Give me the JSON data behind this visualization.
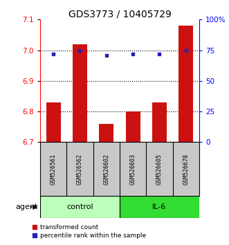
{
  "title": "GDS3773 / 10405729",
  "categories": [
    "GSM526561",
    "GSM526562",
    "GSM526602",
    "GSM526603",
    "GSM526605",
    "GSM526678"
  ],
  "bar_values": [
    6.83,
    7.02,
    6.76,
    6.8,
    6.83,
    7.08
  ],
  "dot_values": [
    72,
    75,
    71,
    72,
    72,
    75
  ],
  "ylim_left": [
    6.7,
    7.1
  ],
  "ylim_right": [
    0,
    100
  ],
  "yticks_left": [
    6.7,
    6.8,
    6.9,
    7.0,
    7.1
  ],
  "yticks_right": [
    0,
    25,
    50,
    75,
    100
  ],
  "ytick_right_labels": [
    "0",
    "25",
    "50",
    "75",
    "100%"
  ],
  "dotted_lines": [
    6.8,
    6.9,
    7.0
  ],
  "bar_color": "#CC1111",
  "dot_color": "#2222BB",
  "bar_width": 0.55,
  "control_color": "#BBFFBB",
  "il6_color": "#33DD33",
  "group_label_control": "control",
  "group_label_il6": "IL-6",
  "agent_label": "agent",
  "legend_bar_label": "transformed count",
  "legend_dot_label": "percentile rank within the sample",
  "title_fontsize": 10,
  "tick_fontsize": 7.5,
  "label_fontsize": 7.5,
  "gray_bg": "#C8C8C8"
}
